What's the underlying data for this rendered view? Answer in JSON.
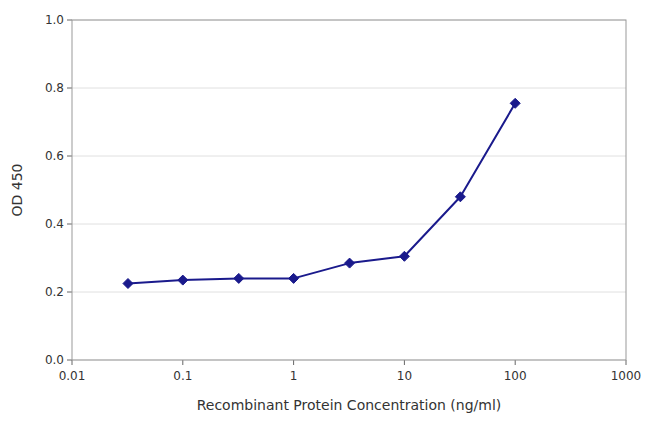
{
  "chart_data": {
    "type": "line",
    "x": [
      0.032,
      0.1,
      0.32,
      1.0,
      3.2,
      10.0,
      32.0,
      100.0
    ],
    "values": [
      0.225,
      0.235,
      0.24,
      0.24,
      0.285,
      0.305,
      0.48,
      0.755
    ],
    "color": "#1a1a8c",
    "marker": "diamond",
    "xlabel": "Recombinant Protein Concentration (ng/ml)",
    "ylabel": "OD 450",
    "log": "x",
    "grid": "y",
    "xlim": [
      0.01,
      1000
    ],
    "ylim": [
      0.0,
      1.0
    ],
    "xticks": [
      0.01,
      0.1,
      1,
      10,
      100,
      1000
    ],
    "yticks": [
      {
        "value": 0.0,
        "label": "0.0"
      },
      0.2,
      0.4,
      0.6,
      0.8,
      {
        "value": 1.0,
        "label": "1.0"
      }
    ]
  }
}
